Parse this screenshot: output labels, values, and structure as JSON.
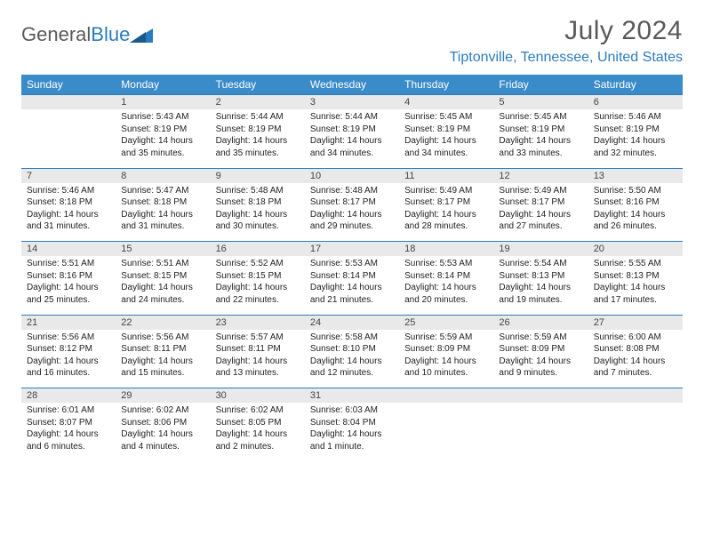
{
  "logo": {
    "word1": "General",
    "word2": "Blue"
  },
  "title": "July 2024",
  "location": "Tiptonville, Tennessee, United States",
  "colors": {
    "header_bg": "#3a8bc9",
    "accent": "#2b7bbf",
    "daynum_bg": "#e9e9e9",
    "text_gray": "#595959"
  },
  "weekdays": [
    "Sunday",
    "Monday",
    "Tuesday",
    "Wednesday",
    "Thursday",
    "Friday",
    "Saturday"
  ],
  "weeks": [
    {
      "nums": [
        "",
        "1",
        "2",
        "3",
        "4",
        "5",
        "6"
      ],
      "cells": [
        null,
        {
          "sr": "Sunrise: 5:43 AM",
          "ss": "Sunset: 8:19 PM",
          "dl": "Daylight: 14 hours and 35 minutes."
        },
        {
          "sr": "Sunrise: 5:44 AM",
          "ss": "Sunset: 8:19 PM",
          "dl": "Daylight: 14 hours and 35 minutes."
        },
        {
          "sr": "Sunrise: 5:44 AM",
          "ss": "Sunset: 8:19 PM",
          "dl": "Daylight: 14 hours and 34 minutes."
        },
        {
          "sr": "Sunrise: 5:45 AM",
          "ss": "Sunset: 8:19 PM",
          "dl": "Daylight: 14 hours and 34 minutes."
        },
        {
          "sr": "Sunrise: 5:45 AM",
          "ss": "Sunset: 8:19 PM",
          "dl": "Daylight: 14 hours and 33 minutes."
        },
        {
          "sr": "Sunrise: 5:46 AM",
          "ss": "Sunset: 8:19 PM",
          "dl": "Daylight: 14 hours and 32 minutes."
        }
      ]
    },
    {
      "nums": [
        "7",
        "8",
        "9",
        "10",
        "11",
        "12",
        "13"
      ],
      "cells": [
        {
          "sr": "Sunrise: 5:46 AM",
          "ss": "Sunset: 8:18 PM",
          "dl": "Daylight: 14 hours and 31 minutes."
        },
        {
          "sr": "Sunrise: 5:47 AM",
          "ss": "Sunset: 8:18 PM",
          "dl": "Daylight: 14 hours and 31 minutes."
        },
        {
          "sr": "Sunrise: 5:48 AM",
          "ss": "Sunset: 8:18 PM",
          "dl": "Daylight: 14 hours and 30 minutes."
        },
        {
          "sr": "Sunrise: 5:48 AM",
          "ss": "Sunset: 8:17 PM",
          "dl": "Daylight: 14 hours and 29 minutes."
        },
        {
          "sr": "Sunrise: 5:49 AM",
          "ss": "Sunset: 8:17 PM",
          "dl": "Daylight: 14 hours and 28 minutes."
        },
        {
          "sr": "Sunrise: 5:49 AM",
          "ss": "Sunset: 8:17 PM",
          "dl": "Daylight: 14 hours and 27 minutes."
        },
        {
          "sr": "Sunrise: 5:50 AM",
          "ss": "Sunset: 8:16 PM",
          "dl": "Daylight: 14 hours and 26 minutes."
        }
      ]
    },
    {
      "nums": [
        "14",
        "15",
        "16",
        "17",
        "18",
        "19",
        "20"
      ],
      "cells": [
        {
          "sr": "Sunrise: 5:51 AM",
          "ss": "Sunset: 8:16 PM",
          "dl": "Daylight: 14 hours and 25 minutes."
        },
        {
          "sr": "Sunrise: 5:51 AM",
          "ss": "Sunset: 8:15 PM",
          "dl": "Daylight: 14 hours and 24 minutes."
        },
        {
          "sr": "Sunrise: 5:52 AM",
          "ss": "Sunset: 8:15 PM",
          "dl": "Daylight: 14 hours and 22 minutes."
        },
        {
          "sr": "Sunrise: 5:53 AM",
          "ss": "Sunset: 8:14 PM",
          "dl": "Daylight: 14 hours and 21 minutes."
        },
        {
          "sr": "Sunrise: 5:53 AM",
          "ss": "Sunset: 8:14 PM",
          "dl": "Daylight: 14 hours and 20 minutes."
        },
        {
          "sr": "Sunrise: 5:54 AM",
          "ss": "Sunset: 8:13 PM",
          "dl": "Daylight: 14 hours and 19 minutes."
        },
        {
          "sr": "Sunrise: 5:55 AM",
          "ss": "Sunset: 8:13 PM",
          "dl": "Daylight: 14 hours and 17 minutes."
        }
      ]
    },
    {
      "nums": [
        "21",
        "22",
        "23",
        "24",
        "25",
        "26",
        "27"
      ],
      "cells": [
        {
          "sr": "Sunrise: 5:56 AM",
          "ss": "Sunset: 8:12 PM",
          "dl": "Daylight: 14 hours and 16 minutes."
        },
        {
          "sr": "Sunrise: 5:56 AM",
          "ss": "Sunset: 8:11 PM",
          "dl": "Daylight: 14 hours and 15 minutes."
        },
        {
          "sr": "Sunrise: 5:57 AM",
          "ss": "Sunset: 8:11 PM",
          "dl": "Daylight: 14 hours and 13 minutes."
        },
        {
          "sr": "Sunrise: 5:58 AM",
          "ss": "Sunset: 8:10 PM",
          "dl": "Daylight: 14 hours and 12 minutes."
        },
        {
          "sr": "Sunrise: 5:59 AM",
          "ss": "Sunset: 8:09 PM",
          "dl": "Daylight: 14 hours and 10 minutes."
        },
        {
          "sr": "Sunrise: 5:59 AM",
          "ss": "Sunset: 8:09 PM",
          "dl": "Daylight: 14 hours and 9 minutes."
        },
        {
          "sr": "Sunrise: 6:00 AM",
          "ss": "Sunset: 8:08 PM",
          "dl": "Daylight: 14 hours and 7 minutes."
        }
      ]
    },
    {
      "nums": [
        "28",
        "29",
        "30",
        "31",
        "",
        "",
        ""
      ],
      "cells": [
        {
          "sr": "Sunrise: 6:01 AM",
          "ss": "Sunset: 8:07 PM",
          "dl": "Daylight: 14 hours and 6 minutes."
        },
        {
          "sr": "Sunrise: 6:02 AM",
          "ss": "Sunset: 8:06 PM",
          "dl": "Daylight: 14 hours and 4 minutes."
        },
        {
          "sr": "Sunrise: 6:02 AM",
          "ss": "Sunset: 8:05 PM",
          "dl": "Daylight: 14 hours and 2 minutes."
        },
        {
          "sr": "Sunrise: 6:03 AM",
          "ss": "Sunset: 8:04 PM",
          "dl": "Daylight: 14 hours and 1 minute."
        },
        null,
        null,
        null
      ]
    }
  ]
}
